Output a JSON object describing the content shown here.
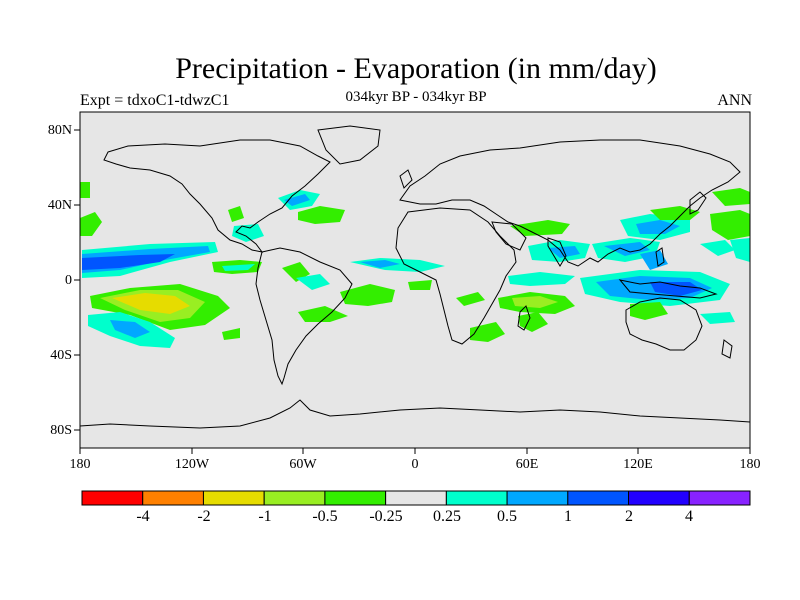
{
  "title": "Precipitation - Evaporation (in mm/day)",
  "subtitle": "034kyr BP - 034kyr BP",
  "left_string": "Expt = tdxoC1-tdwzC1",
  "right_string": "ANN",
  "lat_labels": [
    "80N",
    "40N",
    "0",
    "40S",
    "80S"
  ],
  "lon_labels": [
    "180",
    "120W",
    "60W",
    "0",
    "60E",
    "120E",
    "180"
  ],
  "colorbar": {
    "colors": [
      "#ff0000",
      "#ff8000",
      "#e6dc00",
      "#99ee22",
      "#33ee00",
      "#e6e6e6",
      "#00ffcc",
      "#00a8ff",
      "#0055ff",
      "#2200ff",
      "#8822ff"
    ],
    "labels": [
      "-4",
      "-2",
      "-1",
      "-0.5",
      "-0.25",
      "0.25",
      "0.5",
      "1",
      "2",
      "4"
    ]
  },
  "colors": {
    "background_fill": "#e6e6e6",
    "coast": "#000000"
  }
}
